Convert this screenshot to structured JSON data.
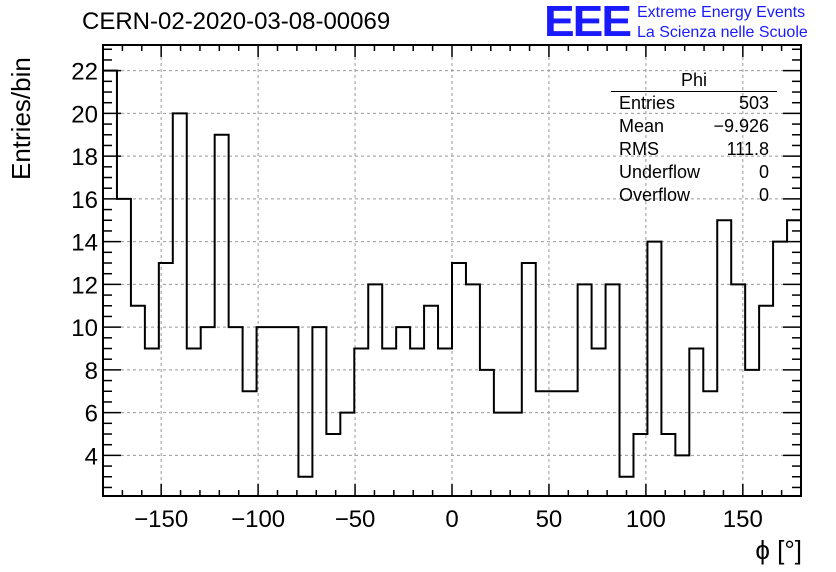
{
  "title": "CERN-02-2020-03-08-00069",
  "logo": {
    "mark": "EEE",
    "line1": "Extreme Energy Events",
    "line2": "La Scienza nelle Scuole",
    "color": "#1a1aff"
  },
  "stats": {
    "name": "Phi",
    "rows": [
      {
        "label": "Entries",
        "value": "503"
      },
      {
        "label": "Mean",
        "value": "−9.926"
      },
      {
        "label": "RMS",
        "value": "111.8"
      },
      {
        "label": "Underflow",
        "value": "0"
      },
      {
        "label": "Overflow",
        "value": "0"
      }
    ]
  },
  "chart_data": {
    "type": "bar",
    "title": "CERN-02-2020-03-08-00069",
    "xlabel": "ϕ [°]",
    "ylabel": "Entries/bin",
    "xlim": [
      -180,
      180
    ],
    "ylim": [
      2.1,
      23.2
    ],
    "bin_width": 7.2,
    "x_ticks": [
      -150,
      -100,
      -50,
      0,
      50,
      100,
      150
    ],
    "x_tick_labels": [
      "−150",
      "−100",
      "−50",
      "0",
      "50",
      "100",
      "150"
    ],
    "y_ticks": [
      4,
      6,
      8,
      10,
      12,
      14,
      16,
      18,
      20,
      22
    ],
    "grid": true,
    "values": [
      22,
      16,
      11,
      9,
      13,
      20,
      9,
      10,
      19,
      10,
      7,
      10,
      10,
      10,
      3,
      10,
      5,
      6,
      9,
      12,
      9,
      10,
      9,
      11,
      9,
      13,
      12,
      8,
      6,
      6,
      13,
      7,
      7,
      7,
      12,
      9,
      12,
      3,
      5,
      14,
      5,
      4,
      9,
      7,
      15,
      12,
      8,
      11,
      14,
      15
    ],
    "line_color": "#000000"
  }
}
